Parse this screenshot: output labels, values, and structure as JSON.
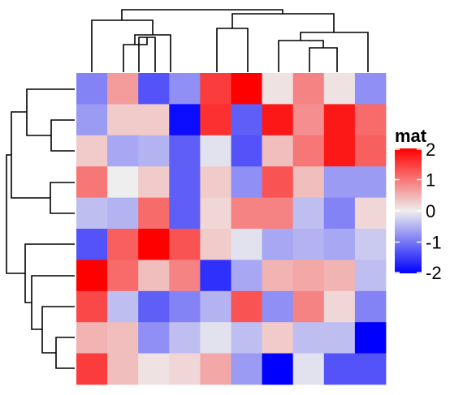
{
  "chart_data": {
    "type": "heatmap",
    "rows": 10,
    "cols": 10,
    "values": [
      [
        -0.9,
        0.7,
        -1.3,
        -0.8,
        1.5,
        2.1,
        0.1,
        0.9,
        0.1,
        -0.8
      ],
      [
        -0.7,
        0.3,
        0.3,
        -1.9,
        1.6,
        -1.2,
        1.8,
        0.8,
        1.8,
        1.1
      ],
      [
        0.3,
        -0.6,
        -0.5,
        -1.2,
        -0.1,
        -1.3,
        0.4,
        1.0,
        1.8,
        1.2
      ],
      [
        1.0,
        0.0,
        0.3,
        -1.2,
        0.3,
        -0.8,
        1.3,
        0.4,
        -0.7,
        -0.7
      ],
      [
        -0.4,
        -0.5,
        1.1,
        -1.2,
        0.2,
        0.9,
        0.9,
        -0.4,
        -0.9,
        0.2
      ],
      [
        -1.3,
        1.2,
        2.0,
        1.3,
        0.3,
        -0.1,
        -0.6,
        -0.5,
        -0.6,
        -0.3
      ],
      [
        2.1,
        1.1,
        0.4,
        0.9,
        -1.6,
        -0.6,
        0.5,
        0.6,
        0.5,
        -0.4
      ],
      [
        1.4,
        -0.4,
        -1.2,
        -0.9,
        -0.5,
        1.3,
        -0.8,
        0.9,
        0.2,
        -0.9
      ],
      [
        0.5,
        0.4,
        -0.8,
        -0.4,
        -0.1,
        -0.4,
        0.3,
        -0.4,
        -0.4,
        -2.2
      ],
      [
        1.5,
        0.4,
        0.1,
        0.2,
        0.6,
        -0.7,
        -2.0,
        -0.1,
        -1.3,
        -1.3
      ]
    ],
    "color_scale": {
      "name": "mat",
      "stops": [
        {
          "value": -2,
          "color": "#0000ff"
        },
        {
          "value": 0,
          "color": "#eeeeee"
        },
        {
          "value": 2,
          "color": "#ff0000"
        }
      ],
      "ticks": [
        2,
        1,
        0,
        -1,
        -2
      ],
      "tick_labels": [
        "2",
        "1",
        "0",
        "-1",
        "-2"
      ]
    },
    "col_dendrogram": {
      "leaf_order": [
        1,
        2,
        3,
        4,
        5,
        6,
        7,
        8,
        9,
        10
      ],
      "heights": {
        "root": 1.0,
        "left": 0.7,
        "sub_a": 0.5,
        "sub_b": 0.35,
        "right_pair": 0.4,
        "right": 0.75,
        "right_b": 0.45,
        "right_c": 0.3,
        "right_d": 0.15
      }
    },
    "row_dendrogram": {
      "leaf_order": [
        1,
        2,
        3,
        4,
        5,
        6,
        7,
        8,
        9,
        10
      ],
      "heights": {
        "root": 1.0,
        "top": 0.83,
        "top_a": 0.6,
        "top_b": 0.3,
        "top_c": 0.4,
        "top_d": 0.17,
        "bottom": 0.77,
        "bottom_a": 0.5,
        "bottom_b": 0.35
      }
    },
    "grid": false,
    "legend_position": "right"
  }
}
